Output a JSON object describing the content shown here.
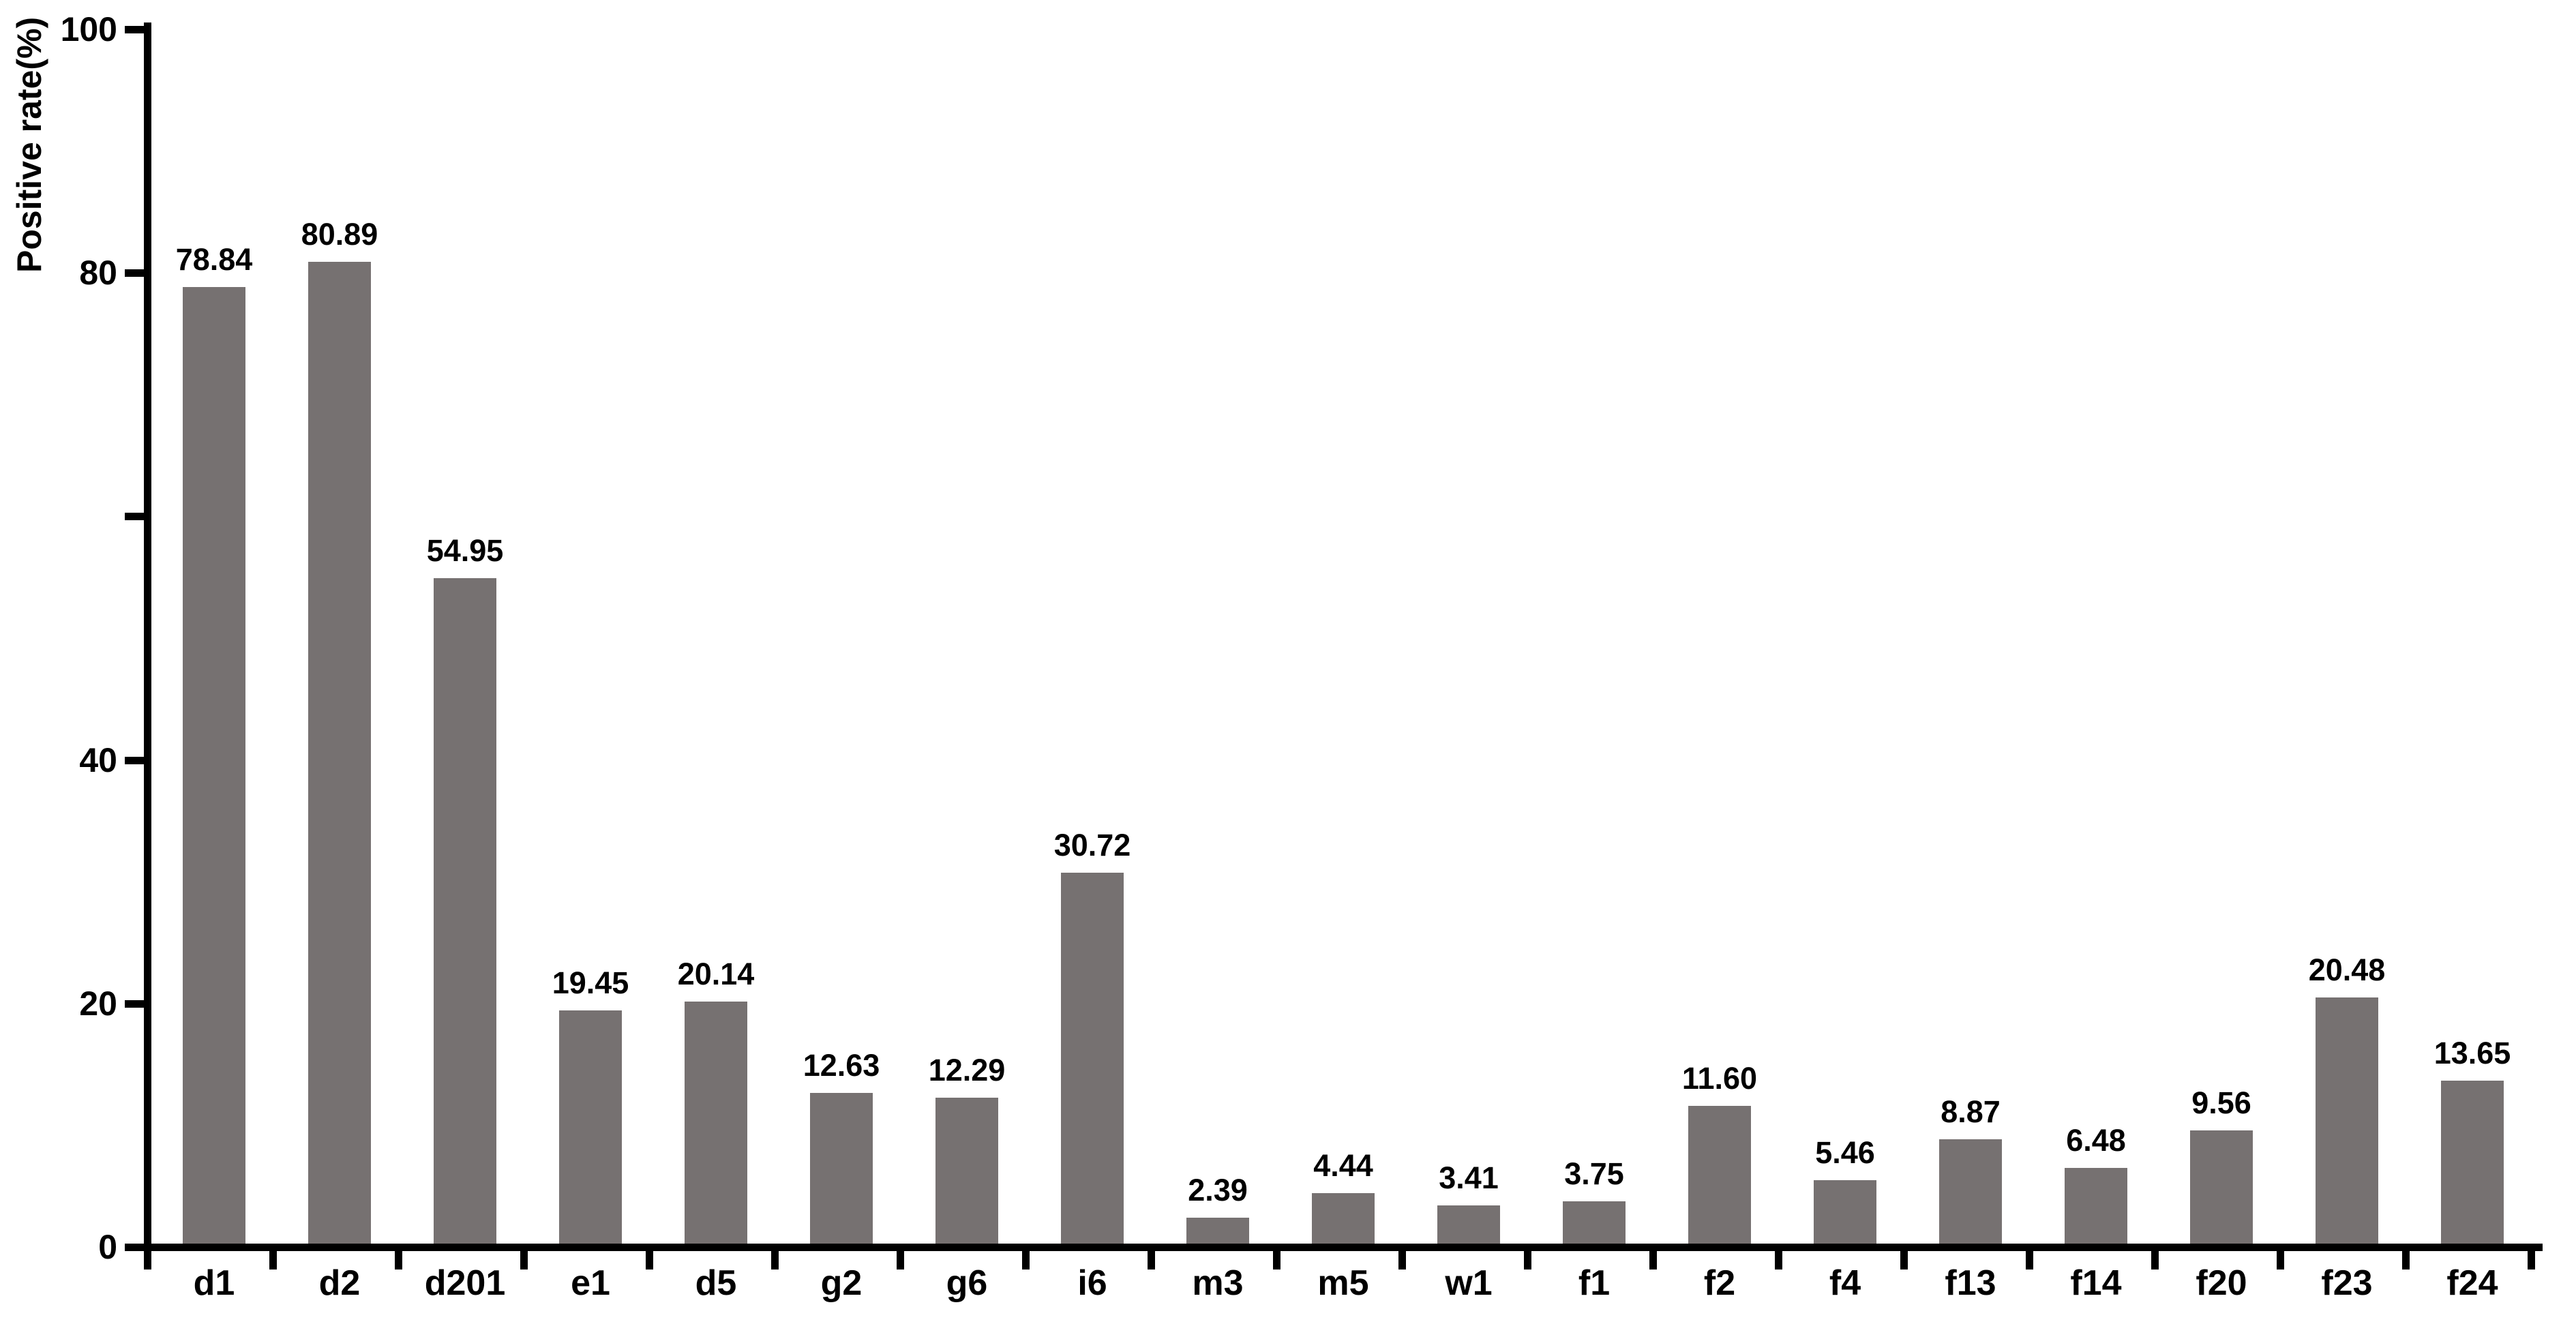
{
  "chart_data": {
    "type": "bar",
    "title": "",
    "xlabel": "",
    "ylabel": "Positive rate(%)",
    "categories": [
      "d1",
      "d2",
      "d201",
      "e1",
      "d5",
      "g2",
      "g6",
      "i6",
      "m3",
      "m5",
      "w1",
      "f1",
      "f2",
      "f4",
      "f13",
      "f14",
      "f20",
      "f23",
      "f24"
    ],
    "values": [
      78.84,
      80.89,
      54.95,
      19.45,
      20.14,
      12.63,
      12.29,
      30.72,
      2.39,
      4.44,
      3.41,
      3.75,
      11.6,
      5.46,
      8.87,
      6.48,
      9.56,
      20.48,
      13.65
    ],
    "value_labels": [
      "78.84",
      "80.89",
      "54.95",
      "19.45",
      "20.14",
      "12.63",
      "12.29",
      "30.72",
      "2.39",
      "4.44",
      "3.41",
      "3.75",
      "11.60",
      "5.46",
      "8.87",
      "6.48",
      "9.56",
      "20.48",
      "13.65"
    ],
    "ylim": [
      0,
      100
    ],
    "yticks": [
      {
        "value": 0,
        "label": "0"
      },
      {
        "value": 20,
        "label": "20"
      },
      {
        "value": 40,
        "label": "40"
      },
      {
        "value": 60,
        "label": ""
      },
      {
        "value": 80,
        "label": "80"
      },
      {
        "value": 100,
        "label": "100"
      }
    ],
    "grid": false,
    "legend": null,
    "bar_color": "#767171",
    "axis_color": "#000000",
    "background_color": "#ffffff"
  }
}
